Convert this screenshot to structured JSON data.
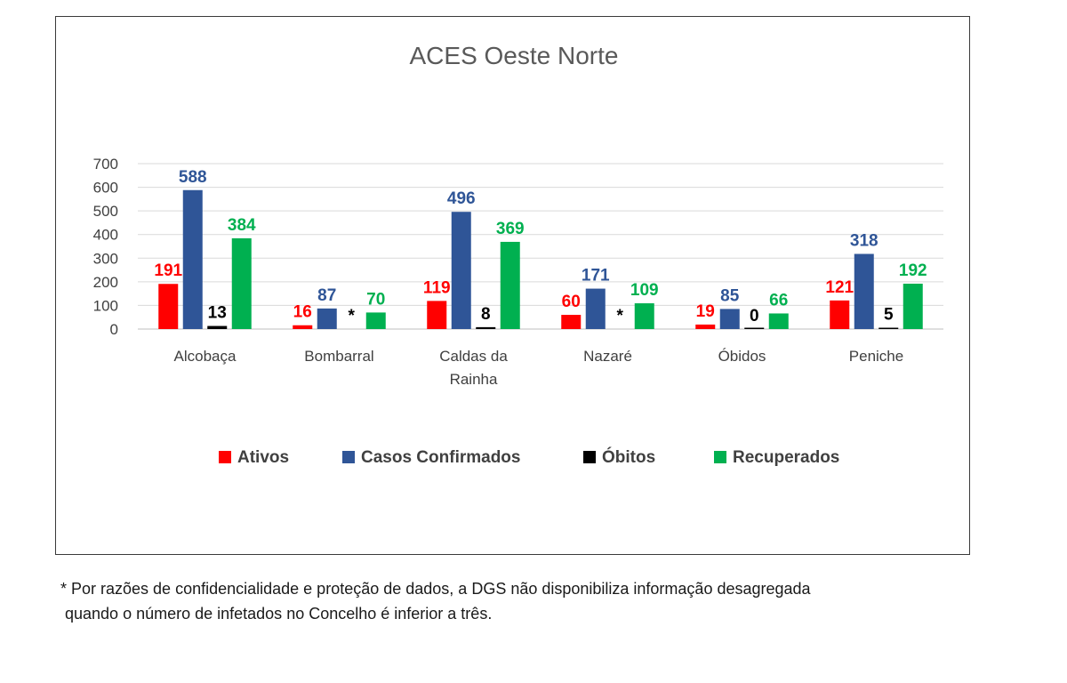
{
  "chart_data": {
    "type": "bar",
    "title": "ACES Oeste Norte",
    "categories": [
      [
        "Alcobaça"
      ],
      [
        "Bombarral"
      ],
      [
        "Caldas da",
        "Rainha"
      ],
      [
        "Nazaré"
      ],
      [
        "Óbidos"
      ],
      [
        "Peniche"
      ]
    ],
    "ylim": [
      0,
      700
    ],
    "yticks": [
      0,
      100,
      200,
      300,
      400,
      500,
      600,
      700
    ],
    "grid": true,
    "legend_position": "bottom",
    "series": [
      {
        "name": "Ativos",
        "color": "#ff0000",
        "values": [
          191,
          16,
          119,
          60,
          19,
          121
        ],
        "labels": [
          "191",
          "16",
          "119",
          "60",
          "19",
          "121"
        ]
      },
      {
        "name": "Casos Confirmados",
        "color": "#2f5597",
        "values": [
          588,
          87,
          496,
          171,
          85,
          318
        ],
        "labels": [
          "588",
          "87",
          "496",
          "171",
          "85",
          "318"
        ]
      },
      {
        "name": "Óbitos",
        "color": "#000000",
        "values": [
          13,
          null,
          8,
          null,
          0,
          5
        ],
        "labels": [
          "13",
          "*",
          "8",
          "*",
          "0",
          "5"
        ]
      },
      {
        "name": "Recuperados",
        "color": "#00b050",
        "values": [
          384,
          70,
          369,
          109,
          66,
          192
        ],
        "labels": [
          "384",
          "70",
          "369",
          "109",
          "66",
          "192"
        ]
      }
    ]
  },
  "footnote": {
    "line1": "* Por razões de confidencialidade e proteção de dados, a DGS não disponibiliza informação desagregada",
    "line2": "quando o número de infetados no Concelho é inferior a três."
  }
}
